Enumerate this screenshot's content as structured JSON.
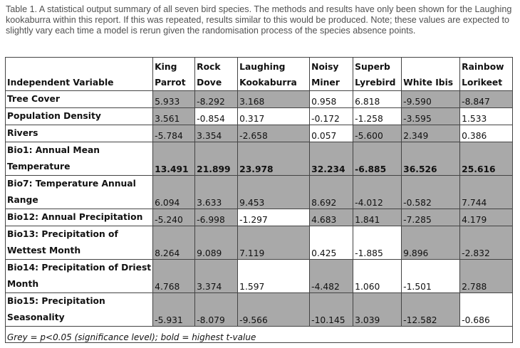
{
  "caption": "Table 1. A statistical output summary of all seven bird species. The methods and results have only been shown for the Laughing kookaburra within this report. If this was repeated, results similar to this would be produced. Note; these values are expected to slightly vary each time a model is rerun given the randomisation process of the species absence points.",
  "header": {
    "first": "Independent Variable",
    "species": [
      {
        "l1": "King",
        "l2": "Parrot"
      },
      {
        "l1": "Rock",
        "l2": "Dove"
      },
      {
        "l1": "Laughing",
        "l2": "Kookaburra"
      },
      {
        "l1": "Noisy",
        "l2": "Miner"
      },
      {
        "l1": "Superb",
        "l2": "Lyrebird"
      },
      {
        "l1": "",
        "l2": "White Ibis"
      },
      {
        "l1": "Rainbow",
        "l2": "Lorikeet"
      }
    ]
  },
  "rows": [
    {
      "l1": "Tree Cover",
      "l2": "",
      "values": [
        "5.933",
        "-8.292",
        "3.168",
        "0.958",
        "6.818",
        "-9.590",
        "-8.847"
      ],
      "grey": [
        true,
        true,
        true,
        false,
        false,
        true,
        true
      ],
      "bold": false
    },
    {
      "l1": "Population Density",
      "l2": "",
      "values": [
        "3.561",
        "-0.854",
        "0.317",
        "-0.172",
        "-1.258",
        "-3.595",
        "1.533"
      ],
      "grey": [
        true,
        false,
        false,
        false,
        false,
        true,
        false
      ],
      "bold": false
    },
    {
      "l1": "Rivers",
      "l2": "",
      "values": [
        "-5.784",
        "3.354",
        "-2.658",
        "0.057",
        "-5.600",
        "2.349",
        "0.386"
      ],
      "grey": [
        true,
        true,
        true,
        false,
        true,
        true,
        false
      ],
      "bold": false
    },
    {
      "l1": "Bio1: Annual Mean",
      "l2": "Temperature",
      "values": [
        "13.491",
        "21.899",
        "23.978",
        "32.234",
        "-6.885",
        "36.526",
        "25.616"
      ],
      "grey": [
        true,
        true,
        true,
        true,
        true,
        true,
        true
      ],
      "bold": true
    },
    {
      "l1": "Bio7: Temperature Annual",
      "l2": "Range",
      "values": [
        "6.094",
        "3.633",
        "9.453",
        "8.692",
        "-4.012",
        "-0.582",
        "7.744"
      ],
      "grey": [
        true,
        true,
        true,
        true,
        true,
        true,
        true
      ],
      "bold": false
    },
    {
      "l1": "Bio12: Annual Precipitation",
      "l2": "",
      "values": [
        "-5.240",
        "-6.998",
        "-1.297",
        "4.683",
        "1.841",
        "-7.285",
        "4.179"
      ],
      "grey": [
        true,
        true,
        false,
        true,
        true,
        true,
        true
      ],
      "bold": false
    },
    {
      "l1": "Bio13: Precipitation of",
      "l2": "Wettest Month",
      "values": [
        "8.264",
        "9.089",
        "7.119",
        "0.425",
        "-1.885",
        "9.896",
        "-2.832"
      ],
      "grey": [
        true,
        true,
        true,
        false,
        false,
        true,
        true
      ],
      "bold": false
    },
    {
      "l1": "Bio14: Precipitation of Driest",
      "l2": "Month",
      "values": [
        "4.768",
        "3.374",
        "1.597",
        "-4.482",
        "1.060",
        "-1.501",
        "2.788"
      ],
      "grey": [
        true,
        true,
        false,
        true,
        false,
        false,
        true
      ],
      "bold": false
    },
    {
      "l1": "Bio15: Precipitation",
      "l2": "Seasonality",
      "values": [
        "-5.931",
        "-8.079",
        "-9.566",
        "-10.145",
        "3.039",
        "-12.582",
        "-0.686"
      ],
      "grey": [
        true,
        true,
        true,
        true,
        true,
        true,
        false
      ],
      "bold": false
    }
  ],
  "footnote": "Grey = p<0.05 (significance level); bold = highest t-value"
}
